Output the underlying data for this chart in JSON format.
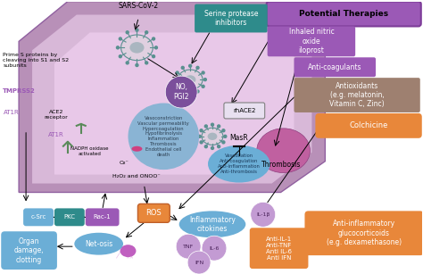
{
  "bg_color": "#ffffff",
  "potential_therapies_label": "Potential Therapies",
  "serine_label": "Serine protease\ninhibitors",
  "inhaled_label": "Inhaled nitric\noxide\niloprost",
  "anti_coag_label": "Anti-coagulants",
  "antioxidants_label": "Antioxidants\n(e.g. melatonin,\nVitamin C, Zinc)",
  "colchicine_label": "Colchicine",
  "anti_inflam_label": "Anti-inflammatory\nglucocorticoids\n(e.g. dexamethasone)",
  "sars_label": "SARS-CoV-2",
  "tmprss2_label": "TMPRSS2",
  "prime_label": "Prime S proteins by\ncleaving into S1 and S2\nsubunits",
  "ace2_receptor_label": "ACE2\nreceptor",
  "at1r_left_label": "AT1R",
  "at1r_right_label": "AT1R",
  "nadph_label": "NADPH oxidase\nactivated",
  "o2_label": "O₂⁻",
  "h2o2_label": "H₂O₂ and ONOO⁻",
  "csrc_label": "c-Src",
  "pkc_label": "PKC",
  "rac1_label": "Rac-1",
  "ros_label": "ROS",
  "inflammatory_label": "Inflammatory\ncitokines",
  "il1b_label": "IL-1β",
  "tnf_label": "TNF",
  "il6_label": "IL-6",
  "ifn_label": "IFN",
  "anti_il1_label": "Anti-IL-1\nAnti-TNF\nAnti IL-6\nAnti IFN",
  "organ_label": "Organ\ndamage,\nclotting",
  "netosis_label": "Net-osis",
  "no_pgi2_label": "NO,\nPGI2",
  "rhace2_label": "rhACE2",
  "masr_label": "MasR",
  "thrombosis_label": "Thrombosis",
  "vasoconstriction_label": "Vasoconstriction\nVascular permeability\nHypercoagulation\nHypofibrinolysis\nInflammation\nThrombosis\nEndothelial cell\ndeath",
  "vasodilation_label": "Vasodilation\nAnti-coagulation\nAnti-inflammation\nAnti-thrombosis"
}
